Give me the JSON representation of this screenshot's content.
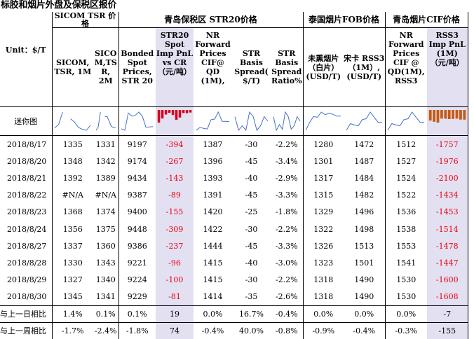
{
  "title": "标胶和烟片外盘及保税区报价",
  "groups": {
    "sicom": "SICOM TSR 价格",
    "str20": "青岛保税区 STR20价格",
    "thai": "泰国烟片FOB价格",
    "qd": "青岛烟片CIF价格"
  },
  "headers": {
    "unit": "Unit：$/T",
    "sicom1m": "SICOM, TSR, 1M",
    "sicom2m": "SICO M,TS R, 2M",
    "bonded": "Bonded Spot Prices, STR 20",
    "pnl_str": "STR20 Spot Imp PnL vs CR（元/吨）",
    "nr_fwd": "NR Forward Prices CIF@ QD (1M),",
    "str_spread": "STR Basis Spread( $/T)",
    "str_ratio": "STR Basis Spread Ratio%",
    "thai_rss": "未熏烟片 （白片） (USD/T)",
    "thai_songka": "宋卡 RSS3 （1M）, (USD/T)",
    "nr_fwd_rss": "NR Forward Prices CIF @ QD(1M), RSS3",
    "rss_pnl": "RSS3 Imp PnL (1M) （元/吨）"
  },
  "sparkline_label": "迷你图",
  "rows": [
    [
      "2018/8/17",
      "1335",
      "1331",
      "9197",
      "-394",
      "1387",
      "-30",
      "-2.2%",
      "1280",
      "1472",
      "1512",
      "-1757"
    ],
    [
      "2018/8/20",
      "1348",
      "1342",
      "9174",
      "-267",
      "1396",
      "-45",
      "-3.4%",
      "1301",
      "1487",
      "1527",
      "-1976"
    ],
    [
      "2018/8/21",
      "1392",
      "1389",
      "9434",
      "-143",
      "1393",
      "-40",
      "-2.9%",
      "1317",
      "1484",
      "1524",
      "-2100"
    ],
    [
      "2018/8/22",
      "#N/A",
      "#N/A",
      "9387",
      "-89",
      "1391",
      "-45",
      "-3.3%",
      "1315",
      "1482",
      "1522",
      "-1434"
    ],
    [
      "2018/8/23",
      "1368",
      "1374",
      "9400",
      "-155",
      "1420",
      "-25",
      "-1.8%",
      "1329",
      "1496",
      "1536",
      "-1453"
    ],
    [
      "2018/8/24",
      "1356",
      "1375",
      "9448",
      "-309",
      "1422",
      "-30",
      "-2.2%",
      "1322",
      "1498",
      "1538",
      "-1514"
    ],
    [
      "2018/8/27",
      "1337",
      "1360",
      "9386",
      "-237",
      "1444",
      "-45",
      "-3.3%",
      "1326",
      "1513",
      "1553",
      "-1478"
    ],
    [
      "2018/8/28",
      "1330",
      "1343",
      "9221",
      "-96",
      "1415",
      "-40",
      "-3.0%",
      "1323",
      "1501",
      "1541",
      "-1447"
    ],
    [
      "2018/8/29",
      "1327",
      "1340",
      "9224",
      "-100",
      "1415",
      "-30",
      "-2.2%",
      "1318",
      "1490",
      "1530",
      "-1600"
    ],
    [
      "2018/8/30",
      "1345",
      "1341",
      "9229",
      "-81",
      "1414",
      "-35",
      "-2.6%",
      "1318",
      "1490",
      "1530",
      "-1608"
    ]
  ],
  "change_rows": [
    [
      "与上一日相比",
      "1.4%",
      "0.1%",
      "0.1%",
      "19",
      "0.0%",
      "16.7%",
      "-0.4%",
      "0.0%",
      "0.0%",
      "0.0%",
      "-7"
    ],
    [
      "与上一周相比",
      "-1.7%",
      "-2.4%",
      "-1.8%",
      "74",
      "-0.4%",
      "40.0%",
      "-0.8%",
      "-0.9%",
      "-0.4%",
      "-0.3%",
      "-155"
    ]
  ],
  "colors": {
    "highlight": "#e3e0f2",
    "negative": "#e8000b",
    "line": "#4472c4",
    "bar_neg": "#d9001b",
    "bar_rss": "#c55a11"
  }
}
